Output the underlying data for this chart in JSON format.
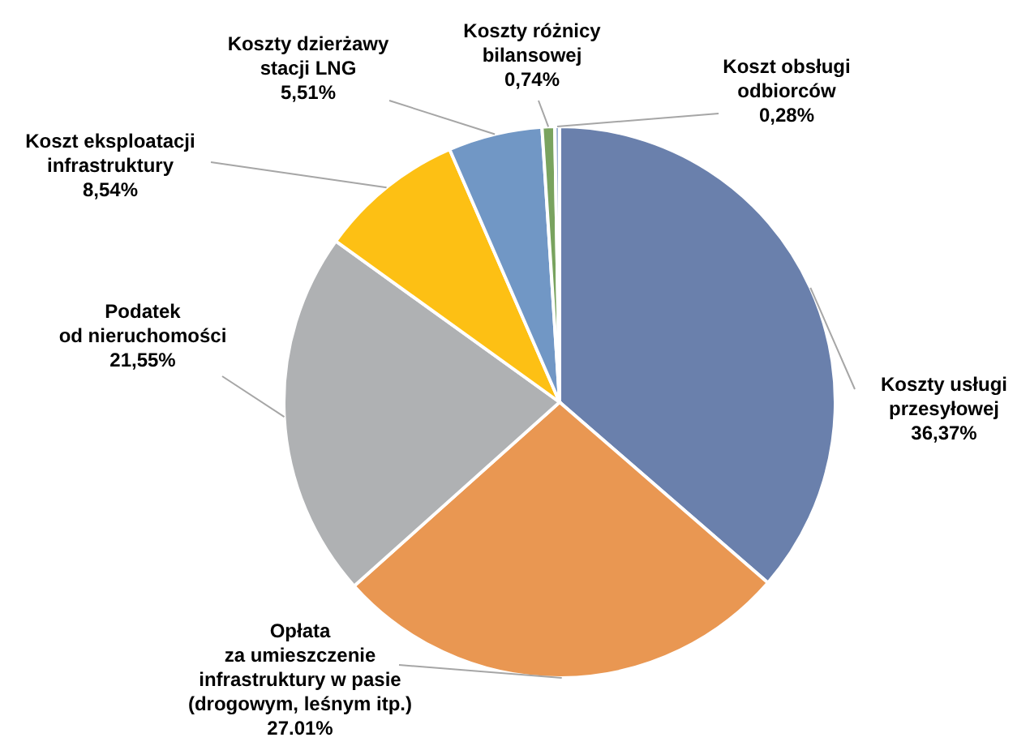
{
  "chart_data": {
    "type": "pie",
    "categories": [
      "Koszty usługi\nprzesyłowej",
      "Opłata\nza umieszczenie\ninfrastruktury w pasie\n(drogowym, leśnym itp.)",
      "Podatek\nod nieruchomości",
      "Koszt eksploatacji\ninfrastruktury",
      "Koszty dzierżawy\nstacji LNG",
      "Koszty różnicy\nbilansowej",
      "Koszt obsługi\nodbiorców"
    ],
    "values": [
      36.37,
      27.01,
      21.55,
      8.54,
      5.51,
      0.74,
      0.28
    ],
    "value_labels": [
      "36,37%",
      "27.01%",
      "21,55%",
      "8,54%",
      "5,51%",
      "0,74%",
      "0,28%"
    ],
    "colors": [
      "#6a80ac",
      "#e99752",
      "#afb1b3",
      "#fdc014",
      "#7197c5",
      "#79a35f",
      "#9eb3d6"
    ],
    "legend": false
  }
}
